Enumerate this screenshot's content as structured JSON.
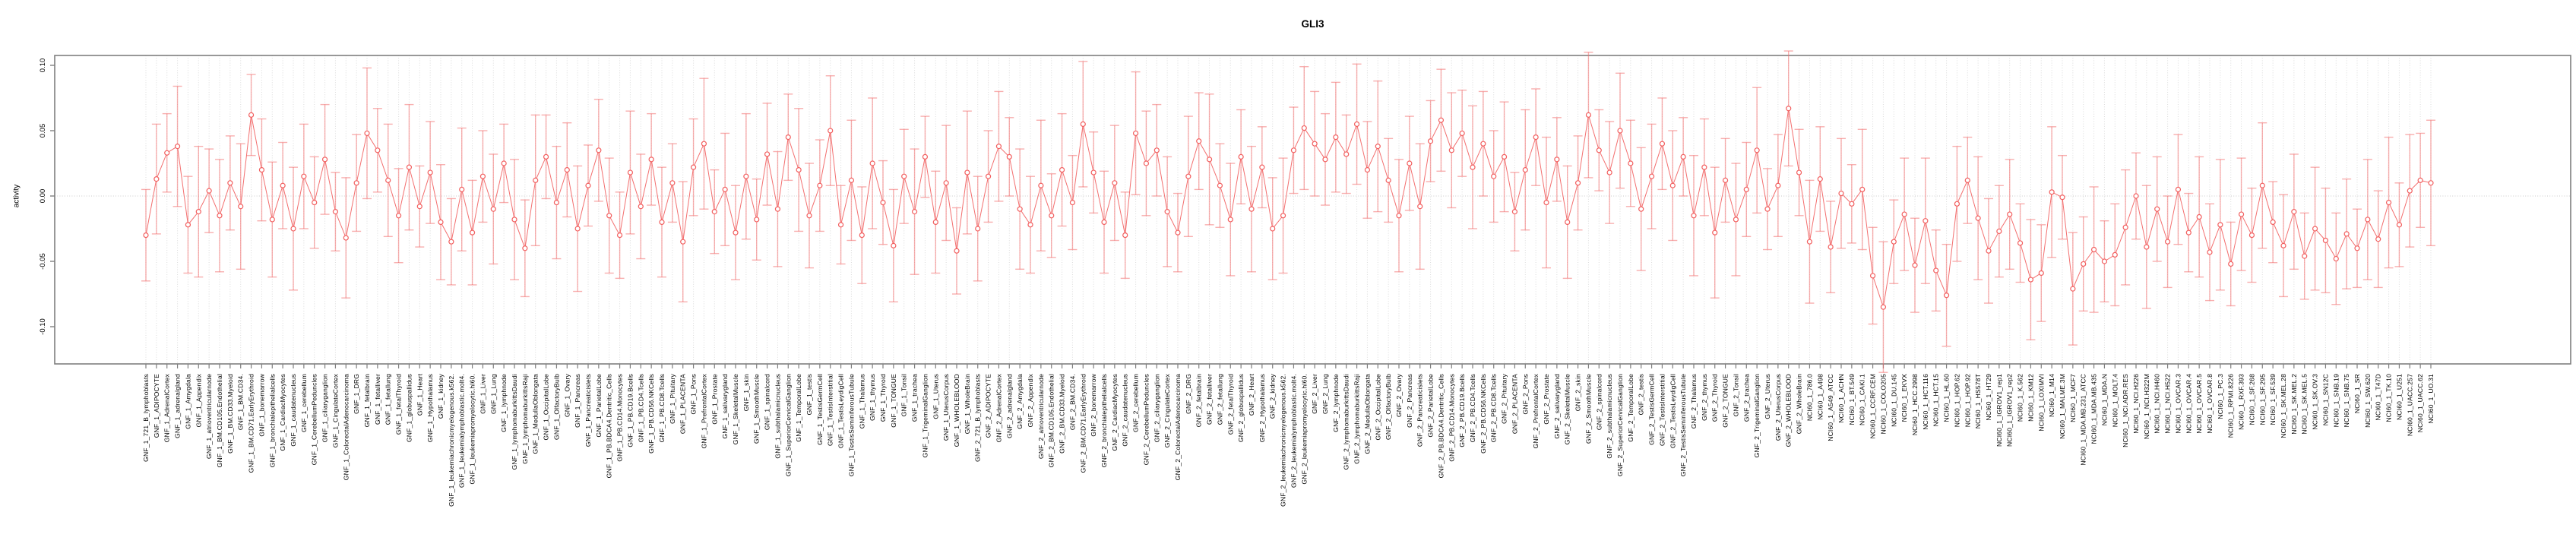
{
  "title": "GLI3",
  "chart_data": {
    "type": "scatter",
    "title": "GLI3",
    "subtitle": "",
    "xlabel": "",
    "ylabel": "activity",
    "ylim": [
      -0.128,
      0.108
    ],
    "yticks": [
      0.1,
      0.05,
      0.0,
      -0.05,
      -0.1
    ],
    "ytick_labels": [
      "0.10",
      "0.05",
      "0.00",
      "-0.05",
      "-0.10"
    ],
    "grid": "vertical dotted gridline per category, dotted horizontal line at zero",
    "legend": null,
    "marker": "open-circle with error bars, points connected by line",
    "point_color": "#f25f5f",
    "errorbar_color": "rgba(243,110,110,0.55)",
    "axis_color": "#7f7f7f",
    "gridline_color": "#dcdcdc",
    "categories": [
      "GNF_1_721_B_lymphoblasts",
      "GNF_1_ADIPOCYTE",
      "GNF_1_AdrenalCortex",
      "GNF_1_adrenalgland",
      "GNF_1_Amygdala",
      "GNF_1_Appendix",
      "GNF_1_atrioventricularnode",
      "GNF_1_BM.CD105.Endothelial",
      "GNF_1_BM.CD33.Myeloid",
      "GNF_1_BM.CD34.",
      "GNF_1_BM.CD71.EarlyErythroid",
      "GNF_1_bonemarrow",
      "GNF_1_bronchialepithelialcells",
      "GNF_1_CardiacMyocytes",
      "GNF_1_caudatenucleus",
      "GNF_1_cerebellum",
      "GNF_1_CerebellumPeduncles",
      "GNF_1_ciliaryganglion",
      "GNF_1_CingulateCortex",
      "GNF_1_ColorectalAdenocarcinoma",
      "GNF_1_DRG",
      "GNF_1_fetalbrain",
      "GNF_1_fetalliver",
      "GNF_1_fetallung",
      "GNF_1_fetalThyroid",
      "GNF_1_globuspallidus",
      "GNF_1_Heart",
      "GNF_1_Hypothalamus",
      "GNF_1_kidney",
      "GNF_1_leukemiachronicmyelogenous.k562.",
      "GNF_1_leukemialymphoblastic.molt4.",
      "GNF_1_leukemiapromyelocytic.hl60.",
      "GNF_1_Liver",
      "GNF_1_Lung",
      "GNF_1_lymphnode",
      "GNF_1_lymphomaburkittsDaudi",
      "GNF_1_lymphomaburkittsRaji",
      "GNF_1_MedullaOblongata",
      "GNF_1_OccipitalLobe",
      "GNF_1_OlfactoryBulb",
      "GNF_1_Ovary",
      "GNF_1_Pancreas",
      "GNF_1_Pancreaticislets",
      "GNF_1_ParietalLobe",
      "GNF_1_PB.BDCA4.Dentritic_Cells",
      "GNF_1_PB.CD14.Monocytes",
      "GNF_1_PB.CD19.Bcells",
      "GNF_1_PB.CD4.Tcells",
      "GNF_1_PB.CD56.NKCells",
      "GNF_1_PB.CD8.Tcells",
      "GNF_1_Pituitary",
      "GNF_1_PLACENTA",
      "GNF_1_Pons",
      "GNF_1_PrefrontalCortex",
      "GNF_1_Prostate",
      "GNF_1_salivarygland",
      "GNF_1_SkeletalMuscle",
      "GNF_1_skin",
      "GNF_1_SmoothMuscle",
      "GNF_1_spinalcord",
      "GNF_1_subthalamicnucleus",
      "GNF_1_SuperiorCervicalGanglion",
      "GNF_1_TemporalLobe",
      "GNF_1_testis",
      "GNF_1_TestisGermCell",
      "GNF_1_TestisInterstitial",
      "GNF_1_TestisLeydigCell",
      "GNF_1_TestisSeminiferousTubule",
      "GNF_1_Thalamus",
      "GNF_1_thymus",
      "GNF_1_Thyroid",
      "GNF_1_TONGUE",
      "GNF_1_Tonsil",
      "GNF_1_trachea",
      "GNF_1_TrigeminalGanglion",
      "GNF_1_Uterus",
      "GNF_1_UterusCorpus",
      "GNF_1_WHOLEBLOOD",
      "GNF_1_WholeBrain",
      "GNF_2_721_B_lymphoblasts",
      "GNF_2_ADIPOCYTE",
      "GNF_2_AdrenalCortex",
      "GNF_2_adrenalgland",
      "GNF_2_Amygdala",
      "GNF_2_Appendix",
      "GNF_2_atrioventricularnode",
      "GNF_2_BM.CD105.Endothelial",
      "GNF_2_BM.CD33.Myeloid",
      "GNF_2_BM.CD34.",
      "GNF_2_BM.CD71.EarlyErythroid",
      "GNF_2_bonemarrow",
      "GNF_2_bronchialepithelialcells",
      "GNF_2_CardiacMyocytes",
      "GNF_2_caudatenucleus",
      "GNF_2_cerebellum",
      "GNF_2_CerebellumPeduncles",
      "GNF_2_ciliaryganglion",
      "GNF_2_CingulateCortex",
      "GNF_2_ColorectalAdenocarcinoma",
      "GNF_2_DRG",
      "GNF_2_fetalbrain",
      "GNF_2_fetalliver",
      "GNF_2_fetallung",
      "GNF_2_fetalThyroid",
      "GNF_2_globuspallidus",
      "GNF_2_Heart",
      "GNF_2_Hypothalamus",
      "GNF_2_kidney",
      "GNF_2_leukemiachronicmyelogenous.k562.",
      "GNF_2_leukemialymphoblastic.molt4.",
      "GNF_2_leukemiapromyelocytic.hl60.",
      "GNF_2_Liver",
      "GNF_2_Lung",
      "GNF_2_lymphnode",
      "GNF_2_lymphomaburkittsDaudi",
      "GNF_2_lymphomaburkittsRaji",
      "GNF_2_MedullaOblongata",
      "GNF_2_OccipitalLobe",
      "GNF_2_OlfactoryBulb",
      "GNF_2_Ovary",
      "GNF_2_Pancreas",
      "GNF_2_Pancreaticislets",
      "GNF_2_ParietalLobe",
      "GNF_2_PB.BDCA4.Dentritic_Cells",
      "GNF_2_PB.CD14.Monocytes",
      "GNF_2_PB.CD19.Bcells",
      "GNF_2_PB.CD4.Tcells",
      "GNF_2_PB.CD56.NKCells",
      "GNF_2_PB.CD8.Tcells",
      "GNF_2_Pituitary",
      "GNF_2_PLACENTA",
      "GNF_2_Pons",
      "GNF_2_PrefrontalCortex",
      "GNF_2_Prostate",
      "GNF_2_salivarygland",
      "GNF_2_SkeletalMuscle",
      "GNF_2_skin",
      "GNF_2_SmoothMuscle",
      "GNF_2_spinalcord",
      "GNF_2_subthalamicnucleus",
      "GNF_2_SuperiorCervicalGanglion",
      "GNF_2_TemporalLobe",
      "GNF_2_testis",
      "GNF_2_TestisGermCell",
      "GNF_2_TestisInterstitial",
      "GNF_2_TestisLeydigCell",
      "GNF_2_TestisSeminiferousTubule",
      "GNF_2_Thalamus",
      "GNF_2_thymus",
      "GNF_2_Thyroid",
      "GNF_2_TONGUE",
      "GNF_2_Tonsil",
      "GNF_2_trachea",
      "GNF_2_TrigeminalGanglion",
      "GNF_2_Uterus",
      "GNF_2_UterusCorpus",
      "GNF_2_WHOLEBLOOD",
      "GNF_2_WholeBrain",
      "NCI60_1_786.0",
      "NCI60_1_A498",
      "NCI60_1_A549_ATCC",
      "NCI60_1_ACHN",
      "NCI60_1_BT.549",
      "NCI60_1_CAKI.1",
      "NCI60_1_CCRF.CEM",
      "NCI60_1_COLO205",
      "NCI60_1_DU.145",
      "NCI60_1_EKVX",
      "NCI60_1_HCC.2998",
      "NCI60_1_HCT.116",
      "NCI60_1_HCT.15",
      "NCI60_1_HL.60",
      "NCI60_1_HOP.62",
      "NCI60_1_HOP.92",
      "NCI60_1_HS578T",
      "NCI60_1_HT29",
      "NCI60_1_IGROV1_rep1",
      "NCI60_1_IGROV1_rep2",
      "NCI60_1_K.562",
      "NCI60_1_KM12",
      "NCI60_1_LOXIMVI",
      "NCI60_1_M14",
      "NCI60_1_MALME.3M",
      "NCI60_1_MCF7",
      "NCI60_1_MDA.MB.231_ATCC",
      "NCI60_1_MDA.MB.435",
      "NCI60_1_MDA.N",
      "NCI60_1_MOLT.4",
      "NCI60_1_NCI.ADR.RES",
      "NCI60_1_NCI.H226",
      "NCI60_1_NCI.H322M",
      "NCI60_1_NCI.H460",
      "NCI60_1_NCI.H522",
      "NCI60_1_OVCAR.3",
      "NCI60_1_OVCAR.4",
      "NCI60_1_OVCAR.5",
      "NCI60_1_OVCAR.8",
      "NCI60_1_PC.3",
      "NCI60_1_RPMI.8226",
      "NCI60_1_RXF.393",
      "NCI60_1_SF.268",
      "NCI60_1_SF.295",
      "NCI60_1_SF.539",
      "NCI60_1_SK.MEL.28",
      "NCI60_1_SK.MEL.2",
      "NCI60_1_SK.MEL.5",
      "NCI60_1_SK.OV.3",
      "NCI60_1_SN12C",
      "NCI60_1_SNB.19",
      "NCI60_1_SNB.75",
      "NCI60_1_SR",
      "NCI60_1_SW.620",
      "NCI60_1_T47D",
      "NCI60_1_TK.10",
      "NCI60_1_U251",
      "NCI60_1_UACC.257",
      "NCI60_1_UACC.62",
      "NCI60_1_UO.31"
    ],
    "values": [
      -0.03,
      0.013,
      0.033,
      0.038,
      -0.022,
      -0.012,
      0.004,
      -0.015,
      0.01,
      -0.008,
      0.062,
      0.02,
      -0.018,
      0.008,
      -0.025,
      0.015,
      -0.005,
      0.028,
      -0.012,
      -0.032,
      0.01,
      0.048,
      0.035,
      0.012,
      -0.015,
      0.022,
      -0.008,
      0.018,
      -0.02,
      -0.035,
      0.005,
      -0.028,
      0.015,
      -0.01,
      0.025,
      -0.018,
      -0.04,
      0.012,
      0.03,
      -0.005,
      0.02,
      -0.025,
      0.008,
      0.035,
      -0.015,
      -0.03,
      0.018,
      -0.008,
      0.028,
      -0.02,
      0.01,
      -0.035,
      0.022,
      0.04,
      -0.012,
      0.005,
      -0.028,
      0.015,
      -0.018,
      0.032,
      -0.01,
      0.045,
      0.02,
      -0.015,
      0.008,
      0.05,
      -0.022,
      0.012,
      -0.03,
      0.025,
      -0.005,
      -0.038,
      0.015,
      -0.012,
      0.03,
      -0.02,
      0.01,
      -0.042,
      0.018,
      -0.025,
      0.015,
      0.038,
      0.03,
      -0.01,
      -0.022,
      0.008,
      -0.015,
      0.02,
      -0.005,
      0.055,
      0.018,
      -0.02,
      0.01,
      -0.03,
      0.048,
      0.025,
      0.035,
      -0.012,
      -0.028,
      0.015,
      0.042,
      0.028,
      0.008,
      -0.018,
      0.03,
      -0.01,
      0.022,
      -0.025,
      -0.015,
      0.035,
      0.052,
      0.04,
      0.028,
      0.045,
      0.032,
      0.055,
      0.02,
      0.038,
      0.012,
      -0.015,
      0.025,
      -0.008,
      0.042,
      0.058,
      0.035,
      0.048,
      0.022,
      0.04,
      0.015,
      0.03,
      -0.012,
      0.02,
      0.045,
      -0.005,
      0.028,
      -0.02,
      0.01,
      0.062,
      0.035,
      0.018,
      0.05,
      0.025,
      -0.01,
      0.015,
      0.04,
      0.008,
      0.03,
      -0.015,
      0.022,
      -0.028,
      0.012,
      -0.018,
      0.005,
      0.035,
      -0.01,
      0.008,
      0.067,
      0.018,
      -0.035,
      0.013,
      -0.039,
      0.002,
      -0.006,
      0.005,
      -0.061,
      -0.085,
      -0.035,
      -0.014,
      -0.053,
      -0.019,
      -0.057,
      -0.076,
      -0.006,
      0.012,
      -0.017,
      -0.042,
      -0.027,
      -0.014,
      -0.036,
      -0.064,
      -0.059,
      0.003,
      -0.001,
      -0.071,
      -0.052,
      -0.041,
      -0.05,
      -0.045,
      -0.024,
      0.0,
      -0.039,
      -0.01,
      -0.035,
      0.005,
      -0.028,
      -0.016,
      -0.043,
      -0.022,
      -0.052,
      -0.014,
      -0.03,
      0.008,
      -0.02,
      -0.038,
      -0.012,
      -0.046,
      -0.025,
      -0.034,
      -0.048,
      -0.029,
      -0.04,
      -0.018,
      -0.033,
      -0.005,
      -0.022,
      0.004,
      0.012,
      0.01
    ],
    "errors": [
      0.035,
      0.042,
      0.03,
      0.046,
      0.037,
      0.05,
      0.032,
      0.043,
      0.036,
      0.048,
      0.031,
      0.039,
      0.044,
      0.033,
      0.047,
      0.04,
      0.035,
      0.042,
      0.03,
      0.046,
      0.037,
      0.05,
      0.032,
      0.043,
      0.036,
      0.048,
      0.031,
      0.039,
      0.044,
      0.033,
      0.047,
      0.04,
      0.035,
      0.042,
      0.03,
      0.046,
      0.037,
      0.05,
      0.032,
      0.043,
      0.036,
      0.048,
      0.031,
      0.039,
      0.044,
      0.033,
      0.047,
      0.04,
      0.035,
      0.042,
      0.03,
      0.046,
      0.037,
      0.05,
      0.032,
      0.043,
      0.036,
      0.048,
      0.031,
      0.039,
      0.044,
      0.033,
      0.047,
      0.04,
      0.035,
      0.042,
      0.03,
      0.046,
      0.037,
      0.05,
      0.032,
      0.043,
      0.036,
      0.048,
      0.031,
      0.039,
      0.044,
      0.033,
      0.047,
      0.04,
      0.035,
      0.042,
      0.03,
      0.046,
      0.037,
      0.05,
      0.032,
      0.043,
      0.036,
      0.048,
      0.031,
      0.039,
      0.044,
      0.033,
      0.047,
      0.04,
      0.035,
      0.042,
      0.03,
      0.046,
      0.037,
      0.05,
      0.032,
      0.043,
      0.036,
      0.048,
      0.031,
      0.039,
      0.044,
      0.033,
      0.047,
      0.04,
      0.035,
      0.042,
      0.03,
      0.046,
      0.037,
      0.05,
      0.032,
      0.043,
      0.036,
      0.048,
      0.031,
      0.039,
      0.044,
      0.033,
      0.047,
      0.04,
      0.035,
      0.042,
      0.03,
      0.046,
      0.037,
      0.05,
      0.032,
      0.043,
      0.036,
      0.048,
      0.031,
      0.039,
      0.044,
      0.033,
      0.047,
      0.04,
      0.035,
      0.042,
      0.03,
      0.046,
      0.037,
      0.05,
      0.032,
      0.043,
      0.036,
      0.048,
      0.031,
      0.039,
      0.044,
      0.033,
      0.047,
      0.04,
      0.035,
      0.042,
      0.03,
      0.046,
      0.037,
      0.05,
      0.032,
      0.043,
      0.036,
      0.048,
      0.031,
      0.039,
      0.044,
      0.033,
      0.047,
      0.04,
      0.035,
      0.042,
      0.03,
      0.046,
      0.037,
      0.05,
      0.032,
      0.043,
      0.036,
      0.048,
      0.031,
      0.039,
      0.044,
      0.033,
      0.047,
      0.04,
      0.035,
      0.042,
      0.03,
      0.046,
      0.037,
      0.05,
      0.032,
      0.043,
      0.036,
      0.048,
      0.031,
      0.039,
      0.044,
      0.033,
      0.047,
      0.04,
      0.035,
      0.042,
      0.03,
      0.046,
      0.037,
      0.05,
      0.032,
      0.043,
      0.036,
      0.048
    ]
  }
}
